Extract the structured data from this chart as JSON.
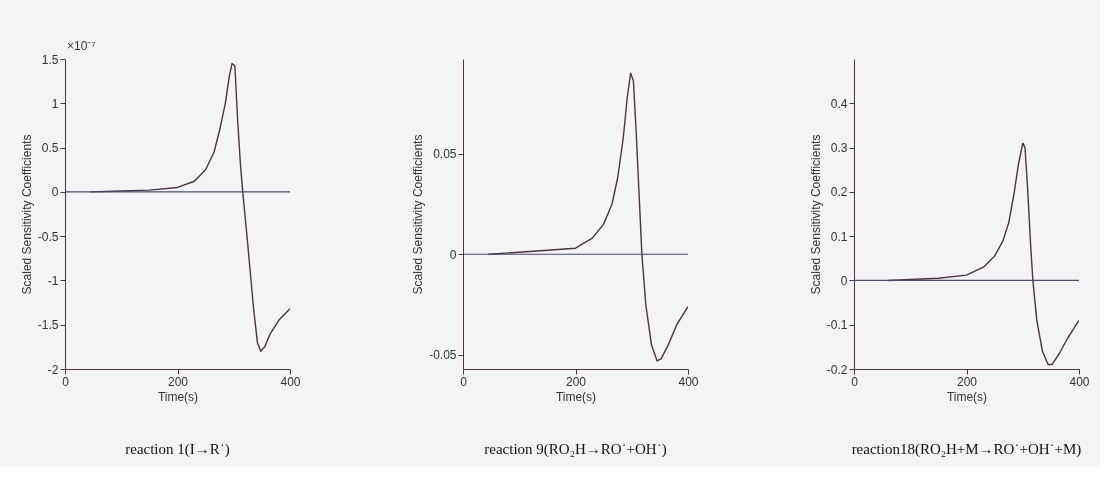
{
  "chart_data": [
    {
      "type": "line",
      "title": "reaction 1(I→R˙)",
      "xlabel": "Time(s)",
      "ylabel": "Scaled Sensitivity Coefficients",
      "annotations": [
        "×10⁻⁷"
      ],
      "color": "#4a3540",
      "x": [
        45,
        100,
        150,
        200,
        230,
        250,
        265,
        275,
        285,
        292,
        297,
        302,
        307,
        312,
        316,
        325,
        335,
        342,
        348,
        355,
        365,
        380,
        400
      ],
      "values": [
        0,
        0.01,
        0.02,
        0.05,
        0.12,
        0.25,
        0.45,
        0.7,
        1.0,
        1.3,
        1.45,
        1.42,
        0.8,
        0.3,
        0,
        -0.6,
        -1.3,
        -1.7,
        -1.8,
        -1.75,
        -1.6,
        -1.45,
        -1.32
      ],
      "xlim": [
        0,
        400
      ],
      "xticks": [
        0,
        200,
        400
      ],
      "ylim": [
        -2,
        1.5
      ],
      "yticks": [
        -2,
        -1.5,
        -1,
        -0.5,
        0,
        0.5,
        1,
        1.5
      ],
      "ref_lines": [
        {
          "axis": "y",
          "value": 0,
          "color": "#4a4a6a"
        }
      ],
      "grid": false,
      "legend": false
    },
    {
      "type": "line",
      "title": "reaction 9(RO₂H→RO˙+OH˙)",
      "xlabel": "Time(s)",
      "ylabel": "Scaled Sensitivity Coefficients",
      "color": "#4a3540",
      "x": [
        45,
        100,
        150,
        200,
        230,
        250,
        265,
        275,
        285,
        292,
        298,
        303,
        308,
        313,
        318,
        325,
        335,
        345,
        352,
        365,
        380,
        400
      ],
      "values": [
        0,
        0.001,
        0.002,
        0.003,
        0.008,
        0.015,
        0.025,
        0.038,
        0.058,
        0.078,
        0.09,
        0.086,
        0.06,
        0.03,
        0,
        -0.025,
        -0.045,
        -0.053,
        -0.052,
        -0.045,
        -0.035,
        -0.026
      ],
      "xlim": [
        0,
        400
      ],
      "xticks": [
        0,
        200,
        400
      ],
      "ylim": [
        -0.057,
        0.097
      ],
      "yticks": [
        -0.05,
        0,
        0.05
      ],
      "ref_lines": [
        {
          "axis": "y",
          "value": 0,
          "color": "#4a4a6a"
        }
      ],
      "grid": false,
      "legend": false
    },
    {
      "type": "line",
      "title": "reaction18(RO₂H+M→RO˙+OH˙+M)",
      "xlabel": "Time(s)",
      "ylabel": "Scaled Sensitivity Coefficients",
      "color": "#4a3540",
      "x": [
        60,
        100,
        150,
        200,
        230,
        250,
        265,
        275,
        285,
        292,
        300,
        304,
        309,
        314,
        318,
        325,
        335,
        345,
        352,
        365,
        380,
        400
      ],
      "values": [
        0,
        0.002,
        0.005,
        0.012,
        0.03,
        0.055,
        0.09,
        0.13,
        0.2,
        0.26,
        0.31,
        0.3,
        0.2,
        0.08,
        0,
        -0.09,
        -0.16,
        -0.19,
        -0.19,
        -0.165,
        -0.13,
        -0.09
      ],
      "xlim": [
        0,
        400
      ],
      "xticks": [
        0,
        200,
        400
      ],
      "ylim": [
        -0.2,
        0.5
      ],
      "yticks": [
        -0.2,
        -0.1,
        0,
        0.1,
        0.2,
        0.3,
        0.4
      ],
      "ref_lines": [
        {
          "axis": "y",
          "value": 0,
          "color": "#4a4a6a"
        }
      ],
      "grid": false,
      "legend": false
    }
  ]
}
